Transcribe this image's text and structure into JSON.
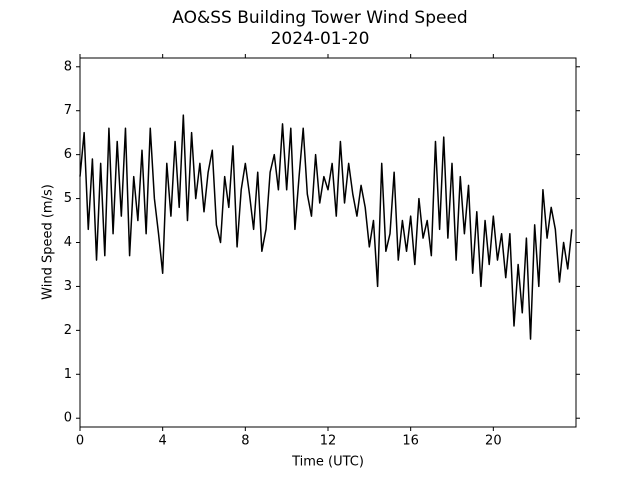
{
  "chart_data": {
    "type": "line",
    "title": "AO&SS Building Tower Wind Speed",
    "subtitle": "2024-01-20",
    "x_label": "Time (UTC)",
    "y_label": "Wind Speed (m/s)",
    "color": "#000000",
    "x": [
      0,
      0.2,
      0.4,
      0.6,
      0.8,
      1,
      1.2,
      1.4,
      1.6,
      1.8,
      2,
      2.2,
      2.4,
      2.6,
      2.8,
      3,
      3.2,
      3.4,
      3.6,
      3.8,
      4,
      4.2,
      4.4,
      4.6,
      4.8,
      5,
      5.2,
      5.4,
      5.6,
      5.8,
      6,
      6.2,
      6.4,
      6.6,
      6.8,
      7,
      7.2,
      7.4,
      7.6,
      7.8,
      8,
      8.2,
      8.4,
      8.6,
      8.8,
      9,
      9.2,
      9.4,
      9.6,
      9.8,
      10,
      10.2,
      10.4,
      10.6,
      10.8,
      11,
      11.2,
      11.4,
      11.6,
      11.8,
      12,
      12.2,
      12.4,
      12.6,
      12.8,
      13,
      13.2,
      13.4,
      13.6,
      13.8,
      14,
      14.2,
      14.4,
      14.6,
      14.8,
      15,
      15.2,
      15.4,
      15.6,
      15.8,
      16,
      16.2,
      16.4,
      16.6,
      16.8,
      17,
      17.2,
      17.4,
      17.6,
      17.8,
      18,
      18.2,
      18.4,
      18.6,
      18.8,
      19,
      19.2,
      19.4,
      19.6,
      19.8,
      20,
      20.2,
      20.4,
      20.6,
      20.8,
      21,
      21.2,
      21.4,
      21.6,
      21.8,
      22,
      22.2,
      22.4,
      22.6,
      22.8,
      23,
      23.2,
      23.4,
      23.6,
      23.8
    ],
    "values": [
      5.5,
      6.5,
      4.3,
      5.9,
      3.6,
      5.8,
      3.7,
      6.6,
      4.2,
      6.3,
      4.6,
      6.6,
      3.7,
      5.5,
      4.5,
      6.1,
      4.2,
      6.6,
      5.0,
      4.2,
      3.3,
      5.8,
      4.6,
      6.3,
      4.8,
      6.9,
      4.5,
      6.5,
      5.0,
      5.8,
      4.7,
      5.6,
      6.1,
      4.4,
      4.0,
      5.5,
      4.8,
      6.2,
      3.9,
      5.2,
      5.8,
      5.1,
      4.3,
      5.6,
      3.8,
      4.3,
      5.6,
      6.0,
      5.2,
      6.7,
      5.2,
      6.6,
      4.3,
      5.5,
      6.6,
      5.1,
      4.6,
      6.0,
      4.9,
      5.5,
      5.2,
      5.8,
      4.6,
      6.3,
      4.9,
      5.8,
      5.1,
      4.6,
      5.3,
      4.8,
      3.9,
      4.5,
      3.0,
      5.8,
      3.8,
      4.2,
      5.6,
      3.6,
      4.5,
      3.8,
      4.6,
      3.5,
      5.0,
      4.1,
      4.5,
      3.7,
      6.3,
      4.3,
      6.4,
      4.1,
      5.8,
      3.6,
      5.5,
      4.2,
      5.3,
      3.3,
      4.7,
      3.0,
      4.5,
      3.5,
      4.6,
      3.6,
      4.2,
      3.2,
      4.2,
      2.1,
      3.5,
      2.4,
      4.1,
      1.8,
      4.4,
      3.0,
      5.2,
      4.1,
      4.8,
      4.3,
      3.1,
      4.0,
      3.4,
      4.3
    ],
    "xlim": [
      0,
      24
    ],
    "xticks": [
      0,
      4,
      8,
      12,
      16,
      20
    ],
    "ylim": [
      -0.2,
      8.2
    ],
    "yticks": [
      0,
      1,
      2,
      3,
      4,
      5,
      6,
      7,
      8
    ],
    "grid": false
  }
}
